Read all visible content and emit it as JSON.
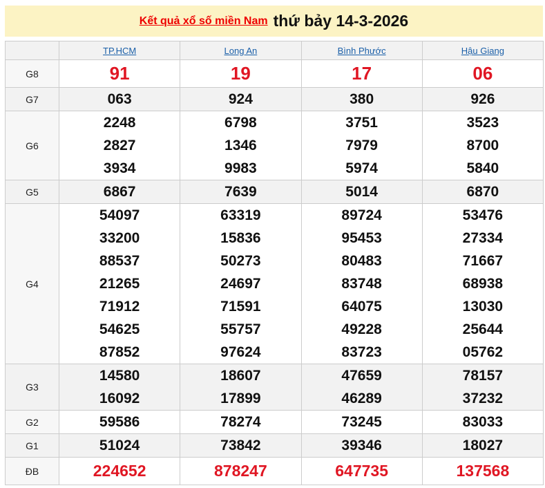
{
  "title": {
    "link": "Kết quả xổ số miền Nam",
    "date": "thứ bảy 14-3-2026"
  },
  "provinces": [
    "TP.HCM",
    "Long An",
    "Bình Phước",
    "Hậu Giang"
  ],
  "rows": [
    {
      "label": "G8",
      "values": [
        [
          "91"
        ],
        [
          "19"
        ],
        [
          "17"
        ],
        [
          "06"
        ]
      ]
    },
    {
      "label": "G7",
      "values": [
        [
          "063"
        ],
        [
          "924"
        ],
        [
          "380"
        ],
        [
          "926"
        ]
      ]
    },
    {
      "label": "G6",
      "values": [
        [
          "2248",
          "2827",
          "3934"
        ],
        [
          "6798",
          "1346",
          "9983"
        ],
        [
          "3751",
          "7979",
          "5974"
        ],
        [
          "3523",
          "8700",
          "5840"
        ]
      ]
    },
    {
      "label": "G5",
      "values": [
        [
          "6867"
        ],
        [
          "7639"
        ],
        [
          "5014"
        ],
        [
          "6870"
        ]
      ]
    },
    {
      "label": "G4",
      "values": [
        [
          "54097",
          "33200",
          "88537",
          "21265",
          "71912",
          "54625",
          "87852"
        ],
        [
          "63319",
          "15836",
          "50273",
          "24697",
          "71591",
          "55757",
          "97624"
        ],
        [
          "89724",
          "95453",
          "80483",
          "83748",
          "64075",
          "49228",
          "83723"
        ],
        [
          "53476",
          "27334",
          "71667",
          "68938",
          "13030",
          "25644",
          "05762"
        ]
      ]
    },
    {
      "label": "G3",
      "values": [
        [
          "14580",
          "16092"
        ],
        [
          "18607",
          "17899"
        ],
        [
          "47659",
          "46289"
        ],
        [
          "78157",
          "37232"
        ]
      ]
    },
    {
      "label": "G2",
      "values": [
        [
          "59586"
        ],
        [
          "78274"
        ],
        [
          "73245"
        ],
        [
          "83033"
        ]
      ]
    },
    {
      "label": "G1",
      "values": [
        [
          "51024"
        ],
        [
          "73842"
        ],
        [
          "39346"
        ],
        [
          "18027"
        ]
      ]
    },
    {
      "label": "ĐB",
      "values": [
        [
          "224652"
        ],
        [
          "878247"
        ],
        [
          "647735"
        ],
        [
          "137568"
        ]
      ]
    }
  ],
  "colors": {
    "highlight": "#e01623",
    "title_bg": "#fcf3c4",
    "link": "#1a5fa8"
  }
}
